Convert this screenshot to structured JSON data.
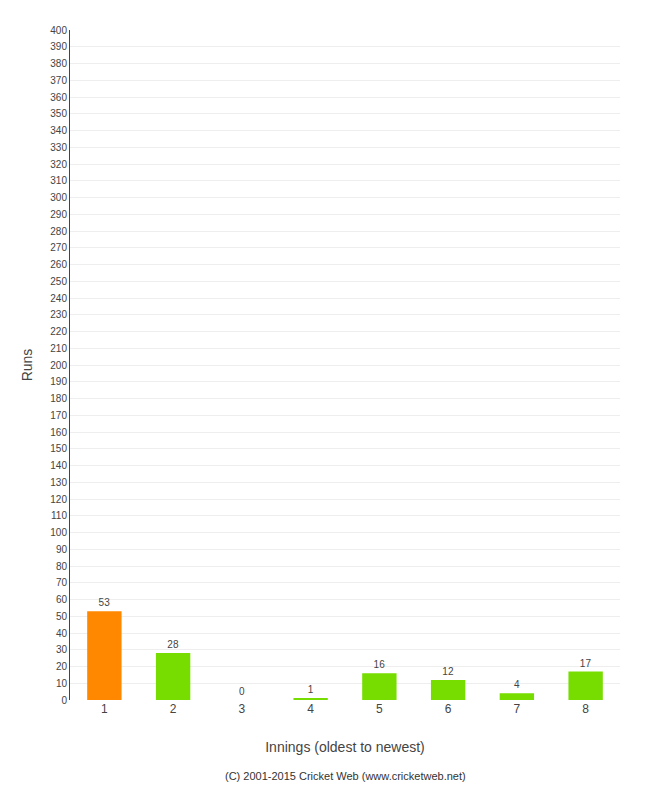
{
  "chart_data": {
    "type": "bar",
    "categories": [
      1,
      2,
      3,
      4,
      5,
      6,
      7,
      8
    ],
    "values": [
      53,
      28,
      0,
      1,
      16,
      12,
      4,
      17
    ],
    "colors": [
      "#ff8800",
      "#77dd00",
      "#77dd00",
      "#77dd00",
      "#77dd00",
      "#77dd00",
      "#77dd00",
      "#77dd00"
    ],
    "xlabel": "Innings (oldest to newest)",
    "ylabel": "Runs",
    "ylim": [
      0,
      400
    ],
    "yticks": [
      0,
      10,
      20,
      30,
      40,
      50,
      60,
      70,
      80,
      90,
      100,
      110,
      120,
      130,
      140,
      150,
      160,
      170,
      180,
      190,
      200,
      210,
      220,
      230,
      240,
      250,
      260,
      270,
      280,
      290,
      300,
      310,
      320,
      330,
      340,
      350,
      360,
      370,
      380,
      390,
      400
    ],
    "grid": true,
    "data_labels": true,
    "annotations": [
      "(C) 2001-2015 Cricket Web (www.cricketweb.net)"
    ]
  }
}
